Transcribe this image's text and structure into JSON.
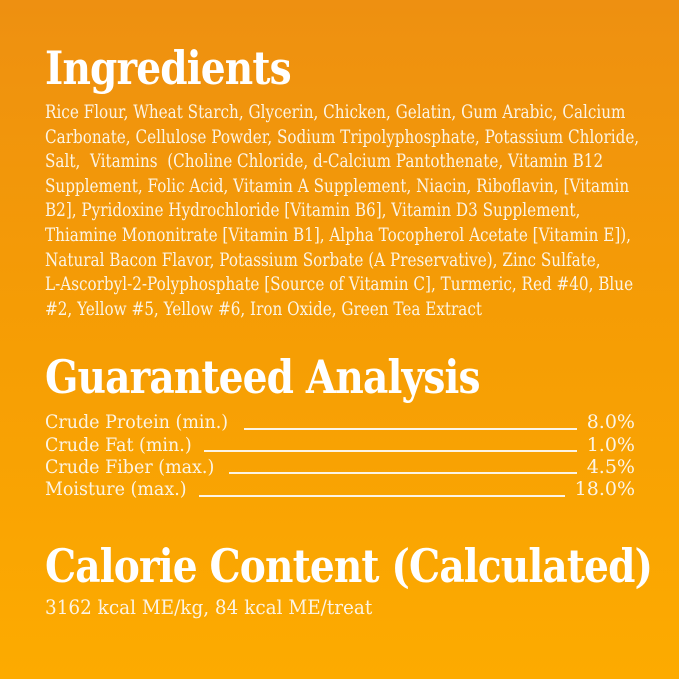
{
  "page": {
    "background_top_color": "#EE9011",
    "background_bottom_color": "#FDAB00",
    "heading_color": "#FFFFFF",
    "body_text_color": "#FCF4E4"
  },
  "ingredients": {
    "heading": "Ingredients",
    "lines": [
      "Rice Flour, Wheat Starch, Glycerin, Chicken, Gelatin, Gum Arabic, Calcium",
      "Carbonate, Cellulose Powder, Sodium Tripolyphosphate, Potassium Chloride,",
      "Salt,  Vitamins  (Choline Chloride, d-Calcium Pantothenate, Vitamin B12",
      "Supplement, Folic Acid, Vitamin A Supplement, Niacin, Riboflavin, [Vitamin",
      "B2], Pyridoxine Hydrochloride [Vitamin B6], Vitamin D3 Supplement,",
      "Thiamine Mononitrate [Vitamin B1], Alpha Tocopherol Acetate [Vitamin E]),",
      "Natural Bacon Flavor, Potassium Sorbate (A Preservative), Zinc Sulfate,",
      "L-Ascorbyl-2-Polyphosphate [Source of Vitamin C], Turmeric, Red #40, Blue",
      "#2, Yellow #5, Yellow #6, Iron Oxide, Green Tea Extract"
    ]
  },
  "guaranteed_analysis": {
    "heading": "Guaranteed Analysis",
    "rows": [
      {
        "label": "Crude Protein (min.)",
        "value": "8.0%"
      },
      {
        "label": "Crude Fat (min.)",
        "value": "1.0%"
      },
      {
        "label": "Crude Fiber (max.)",
        "value": "4.5%"
      },
      {
        "label": "Moisture (max.)",
        "value": "18.0%"
      }
    ]
  },
  "calorie_content": {
    "heading": "Calorie Content (Calculated)",
    "value": "3162 kcal ME/kg, 84 kcal ME/treat"
  }
}
